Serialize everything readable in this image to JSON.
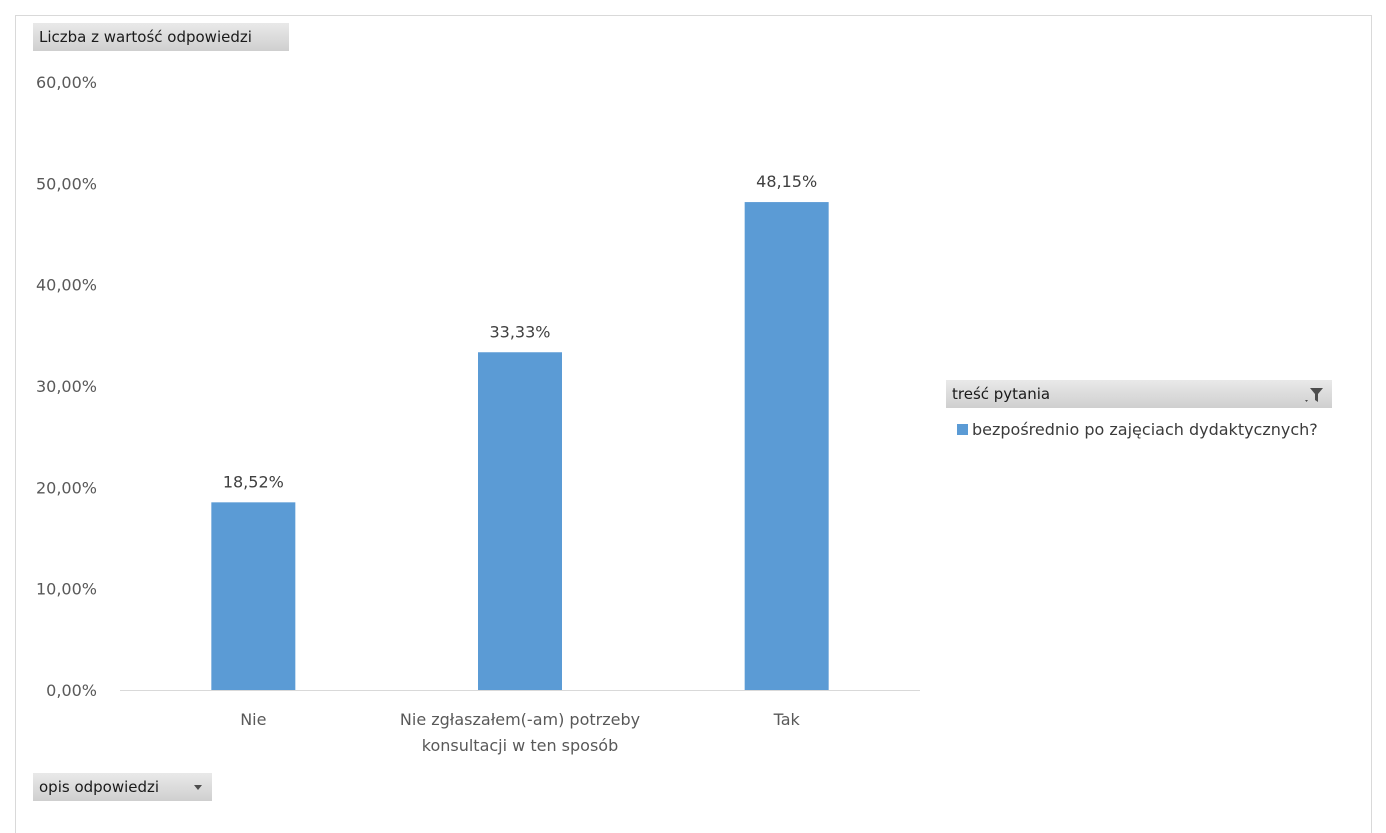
{
  "chart_data": {
    "type": "bar",
    "categories": [
      [
        "Nie"
      ],
      [
        "Nie zgłaszałem(-am) potrzeby",
        "konsultacji w ten sposób"
      ],
      [
        "Tak"
      ]
    ],
    "series": [
      {
        "name": "bezpośrednio po zajęciach dydaktycznych?",
        "values": [
          18.52,
          33.33,
          48.15
        ],
        "labels": [
          "18,52%",
          "33,33%",
          "48,15%"
        ]
      }
    ],
    "ylim": [
      0,
      60
    ],
    "yticks": [
      0,
      10,
      20,
      30,
      40,
      50,
      60
    ],
    "ytick_labels": [
      "0,00%",
      "10,00%",
      "20,00%",
      "30,00%",
      "40,00%",
      "50,00%",
      "60,00%"
    ],
    "grid": false,
    "legend_position": "right",
    "bar_color": "#5b9bd5"
  },
  "fields": {
    "value_field": "Liczba z wartość odpowiedzi",
    "axis_field": "opis odpowiedzi",
    "legend_field": "treść pytania"
  },
  "icons": {
    "axis_dropdown": "chevron-down-icon",
    "legend_filter": "filter-icon"
  }
}
